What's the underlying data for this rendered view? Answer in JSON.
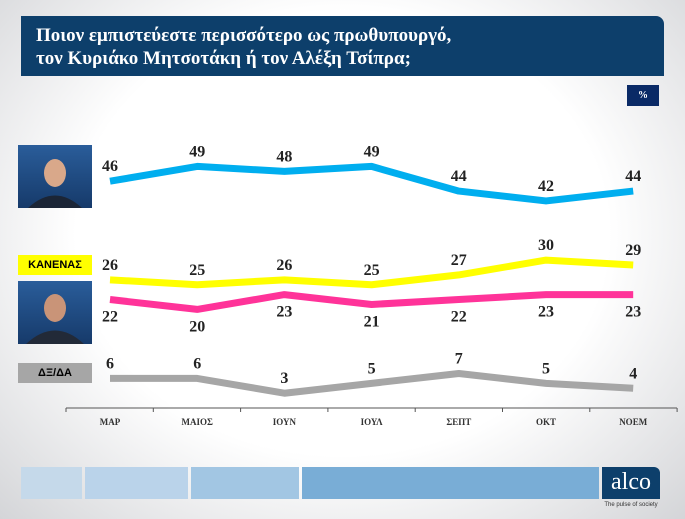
{
  "title": {
    "line1": "Ποιον εμπιστεύεστε περισσότερο ως πρωθυπουργό,",
    "line2": "τον Κυριάκο Μητσοτάκη ή τον Αλέξη Τσίπρα;"
  },
  "unit_badge": "%",
  "labels": {
    "none": "ΚΑΝΕΝΑΣ",
    "dk": "ΔΞ/ΔΑ"
  },
  "logo": {
    "text": "alco",
    "tagline": "The pulse of society"
  },
  "chart_data": {
    "type": "line",
    "categories": [
      "ΜΑΡ",
      "ΜΑΙΟΣ",
      "ΙΟΥΝ",
      "ΙΟΥΛ",
      "ΣΕΠΤ",
      "ΟΚΤ",
      "ΝΟΕΜ"
    ],
    "ylim": [
      0,
      50
    ],
    "grid": false,
    "series": [
      {
        "key": "mitsotakis",
        "color": "#00aeef",
        "values": [
          46,
          49,
          48,
          49,
          44,
          42,
          44
        ],
        "label_pos": "above"
      },
      {
        "key": "none",
        "name": "ΚΑΝΕΝΑΣ",
        "color": "#ffff00",
        "values": [
          26,
          25,
          26,
          25,
          27,
          30,
          29
        ],
        "label_pos": "above"
      },
      {
        "key": "tsipras",
        "color": "#ff3399",
        "values": [
          22,
          20,
          23,
          21,
          22,
          23,
          23
        ],
        "label_pos": "below"
      },
      {
        "key": "dk",
        "name": "ΔΞ/ΔΑ",
        "color": "#a6a6a6",
        "values": [
          6,
          6,
          3,
          5,
          7,
          5,
          4
        ],
        "label_pos": "above"
      }
    ]
  }
}
